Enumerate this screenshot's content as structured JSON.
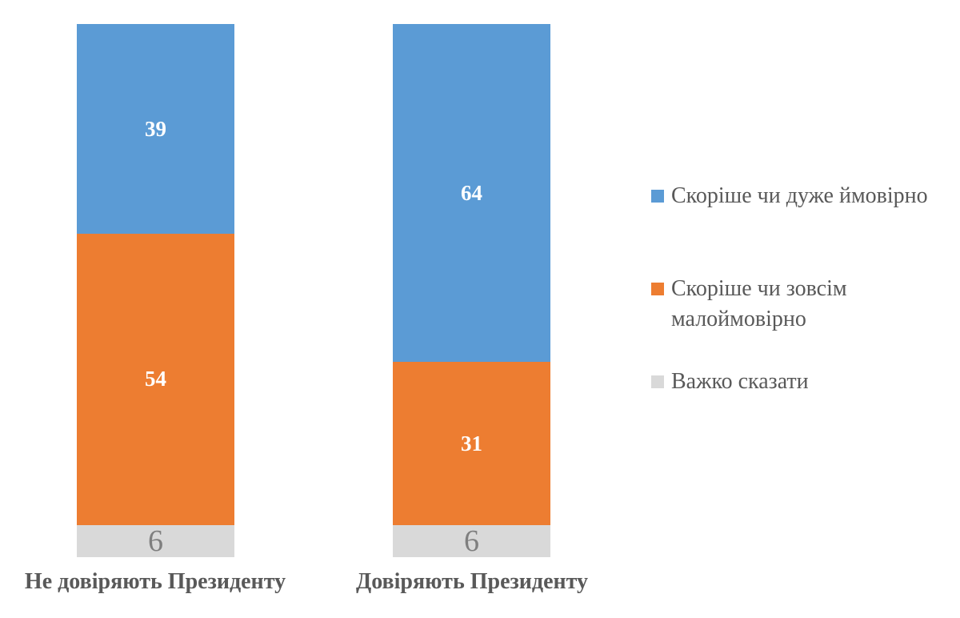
{
  "chart_data": {
    "type": "bar",
    "subtype": "stacked-vertical-column",
    "title": "",
    "categories": [
      "Не довіряють Президенту",
      "Довіряють Президенту"
    ],
    "series": [
      {
        "name": "Скоріше чи дуже ймовірно",
        "color": "#5B9BD5",
        "values": [
          39,
          64
        ],
        "label_color": "#FFFFFF",
        "label_bold": true,
        "label_size": 27
      },
      {
        "name": "Скоріше чи зовсім малоймовірно",
        "color": "#ED7D31",
        "values": [
          54,
          31
        ],
        "label_color": "#FFFFFF",
        "label_bold": true,
        "label_size": 27
      },
      {
        "name": "Важко сказати",
        "color": "#D9D9D9",
        "values": [
          6,
          6
        ],
        "label_color": "#7F7F7F",
        "label_bold": false,
        "label_size": 38
      }
    ],
    "data_labels": "inside-center",
    "value_axis": {
      "visible": false,
      "min": 0,
      "max": 100
    },
    "category_axis": {
      "visible": true,
      "line": false
    },
    "grid": false,
    "legend_position": "right",
    "background": "#FFFFFF",
    "category_label_color": "#595959",
    "legend_text_color": "#595959"
  }
}
